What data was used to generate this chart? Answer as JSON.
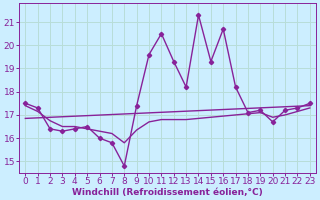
{
  "xlabel": "Windchill (Refroidissement éolien,°C)",
  "background_color": "#cceeff",
  "grid_color": "#b8ddd8",
  "line_color": "#882299",
  "xlim": [
    -0.5,
    23.5
  ],
  "ylim": [
    14.5,
    21.8
  ],
  "yticks": [
    15,
    16,
    17,
    18,
    19,
    20,
    21
  ],
  "xticks": [
    0,
    1,
    2,
    3,
    4,
    5,
    6,
    7,
    8,
    9,
    10,
    11,
    12,
    13,
    14,
    15,
    16,
    17,
    18,
    19,
    20,
    21,
    22,
    23
  ],
  "series1_x": [
    0,
    1,
    2,
    3,
    4,
    5,
    6,
    7,
    8,
    9,
    10,
    11,
    12,
    13,
    14,
    15,
    16,
    17,
    18,
    19,
    20,
    21,
    22,
    23
  ],
  "series1_y": [
    17.5,
    17.3,
    16.4,
    16.3,
    16.4,
    16.5,
    16.0,
    15.8,
    14.8,
    17.4,
    19.6,
    20.5,
    19.3,
    18.2,
    21.3,
    19.3,
    20.7,
    18.2,
    17.1,
    17.2,
    16.7,
    17.2,
    17.3,
    17.5
  ],
  "trend_x": [
    0,
    23
  ],
  "trend_y": [
    16.85,
    17.4
  ],
  "smooth_x": [
    0,
    1,
    2,
    3,
    4,
    5,
    6,
    7,
    8,
    9,
    10,
    11,
    12,
    13,
    14,
    15,
    16,
    17,
    18,
    19,
    20,
    21,
    22,
    23
  ],
  "smooth_y": [
    17.4,
    17.15,
    16.75,
    16.5,
    16.5,
    16.4,
    16.3,
    16.2,
    15.8,
    16.35,
    16.7,
    16.8,
    16.8,
    16.8,
    16.85,
    16.9,
    16.95,
    17.0,
    17.05,
    17.1,
    16.9,
    17.0,
    17.15,
    17.3
  ]
}
